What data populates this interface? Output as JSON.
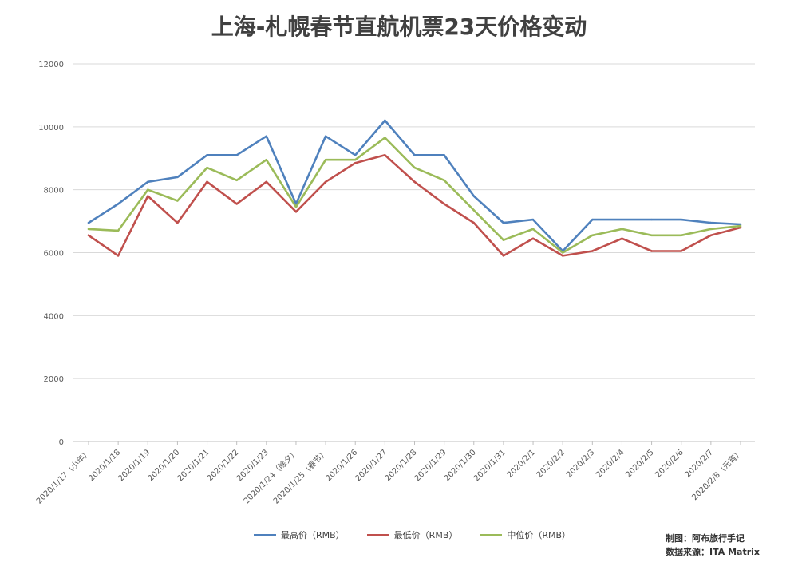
{
  "chart_data": {
    "type": "line",
    "title": "上海-札幌春节直航机票23天价格变动",
    "categories": [
      "2020/1/17（小年）",
      "2020/1/18",
      "2020/1/19",
      "2020/1/20",
      "2020/1/21",
      "2020/1/22",
      "2020/1/23",
      "2020/1/24（除夕）",
      "2020/1/25（春节）",
      "2020/1/26",
      "2020/1/27",
      "2020/1/28",
      "2020/1/29",
      "2020/1/30",
      "2020/1/31",
      "2020/2/1",
      "2020/2/2",
      "2020/2/3",
      "2020/2/4",
      "2020/2/5",
      "2020/2/6",
      "2020/2/7",
      "2020/2/8（元宵）"
    ],
    "series": [
      {
        "name": "最高价（RMB）",
        "color": "#4f81bd",
        "values": [
          6950,
          7550,
          8250,
          8400,
          9100,
          9100,
          9700,
          7550,
          9700,
          9100,
          10200,
          9100,
          9100,
          7800,
          6950,
          7050,
          6050,
          7050,
          7050,
          7050,
          7050,
          6950,
          6900
        ]
      },
      {
        "name": "最低价（RMB）",
        "color": "#c0504d",
        "values": [
          6550,
          5900,
          7800,
          6950,
          8250,
          7550,
          8250,
          7300,
          8250,
          8850,
          9100,
          8250,
          7550,
          6950,
          5900,
          6450,
          5900,
          6050,
          6450,
          6050,
          6050,
          6550,
          6800
        ]
      },
      {
        "name": "中位价（RMB）",
        "color": "#9bbb59",
        "values": [
          6750,
          6700,
          8000,
          7650,
          8700,
          8300,
          8950,
          7450,
          8950,
          8950,
          9650,
          8700,
          8300,
          7350,
          6400,
          6750,
          6000,
          6550,
          6750,
          6550,
          6550,
          6750,
          6850
        ]
      }
    ],
    "yticks": [
      0,
      2000,
      4000,
      6000,
      8000,
      10000,
      12000
    ],
    "ylim": [
      0,
      12000
    ],
    "grid": true,
    "legend": "bottom"
  },
  "credits": {
    "made_by": "制图：阿布旅行手记",
    "source": "数据来源：ITA Matrix"
  }
}
